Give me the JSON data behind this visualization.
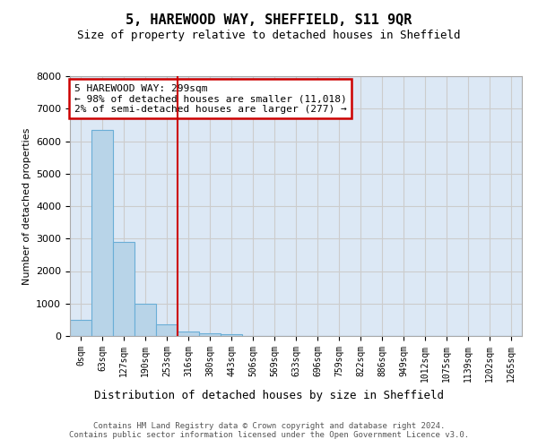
{
  "title": "5, HAREWOOD WAY, SHEFFIELD, S11 9QR",
  "subtitle": "Size of property relative to detached houses in Sheffield",
  "xlabel": "Distribution of detached houses by size in Sheffield",
  "ylabel": "Number of detached properties",
  "bar_values": [
    500,
    6350,
    2900,
    1000,
    350,
    130,
    80,
    50,
    0,
    0,
    0,
    0,
    0,
    0,
    0,
    0,
    0,
    0,
    0,
    0,
    0
  ],
  "bar_labels": [
    "0sqm",
    "63sqm",
    "127sqm",
    "190sqm",
    "253sqm",
    "316sqm",
    "380sqm",
    "443sqm",
    "506sqm",
    "569sqm",
    "633sqm",
    "696sqm",
    "759sqm",
    "822sqm",
    "886sqm",
    "949sqm",
    "1012sqm",
    "1075sqm",
    "1139sqm",
    "1202sqm",
    "1265sqm"
  ],
  "bar_color": "#b8d4e8",
  "bar_edge_color": "#6aaed6",
  "property_line_x": 4.5,
  "property_line_color": "#cc0000",
  "annotation_text": "5 HAREWOOD WAY: 299sqm\n← 98% of detached houses are smaller (11,018)\n2% of semi-detached houses are larger (277) →",
  "annotation_box_color": "#cc0000",
  "ylim": [
    0,
    8000
  ],
  "yticks": [
    0,
    1000,
    2000,
    3000,
    4000,
    5000,
    6000,
    7000,
    8000
  ],
  "footer_text": "Contains HM Land Registry data © Crown copyright and database right 2024.\nContains public sector information licensed under the Open Government Licence v3.0.",
  "grid_color": "#cccccc",
  "background_color": "#dce8f5"
}
